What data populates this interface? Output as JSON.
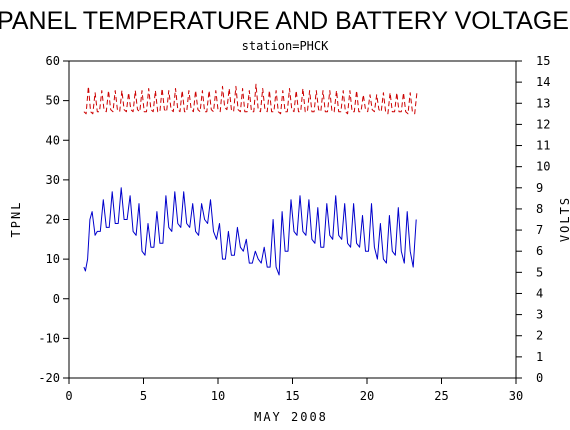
{
  "chart_data": {
    "type": "line",
    "title": "PANEL TEMPERATURE AND BATTERY VOLTAGE",
    "subtitle": "station=PHCK",
    "xlabel": "MAY 2008",
    "ylabel_left": "TPNL",
    "ylabel_right": "VOLTS",
    "xlim": [
      0,
      30
    ],
    "ylim_left": [
      -20,
      60
    ],
    "ylim_right": [
      0,
      15
    ],
    "x_ticks": [
      "0",
      "5",
      "10",
      "15",
      "20",
      "25",
      "30"
    ],
    "y_left_ticks": [
      "-20",
      "-10",
      "0",
      "10",
      "20",
      "30",
      "40",
      "50",
      "60"
    ],
    "y_right_ticks": [
      "0",
      "1",
      "2",
      "3",
      "4",
      "5",
      "6",
      "7",
      "8",
      "9",
      "10",
      "11",
      "12",
      "13",
      "14",
      "15"
    ],
    "grid": false,
    "series": [
      {
        "axis": "left",
        "color": "#0000cc",
        "style": "solid",
        "x": [
          1.0,
          1.1,
          1.25,
          1.4,
          1.55,
          1.75,
          1.9,
          2.1,
          2.3,
          2.5,
          2.7,
          2.9,
          3.1,
          3.3,
          3.5,
          3.7,
          3.9,
          4.1,
          4.3,
          4.5,
          4.7,
          4.9,
          5.1,
          5.3,
          5.5,
          5.7,
          5.9,
          6.1,
          6.3,
          6.5,
          6.7,
          6.9,
          7.1,
          7.3,
          7.5,
          7.7,
          7.9,
          8.1,
          8.3,
          8.5,
          8.7,
          8.9,
          9.1,
          9.3,
          9.5,
          9.7,
          9.9,
          10.1,
          10.3,
          10.5,
          10.7,
          10.9,
          11.1,
          11.3,
          11.5,
          11.7,
          11.9,
          12.1,
          12.3,
          12.5,
          12.7,
          12.9,
          13.1,
          13.3,
          13.5,
          13.7,
          13.9,
          14.1,
          14.3,
          14.5,
          14.7,
          14.9,
          15.1,
          15.3,
          15.5,
          15.7,
          15.9,
          16.1,
          16.3,
          16.5,
          16.7,
          16.9,
          17.1,
          17.3,
          17.5,
          17.7,
          17.9,
          18.1,
          18.3,
          18.5,
          18.7,
          18.9,
          19.1,
          19.3,
          19.5,
          19.7,
          19.9,
          20.1,
          20.3,
          20.5,
          20.7,
          20.9,
          21.1,
          21.3,
          21.5,
          21.7,
          21.9,
          22.1,
          22.3,
          22.5,
          22.7,
          22.9,
          23.1,
          23.3
        ],
        "y": [
          8,
          7,
          10,
          20,
          22,
          16,
          17,
          17,
          25,
          18,
          18,
          27,
          19,
          19,
          28,
          20,
          20,
          26,
          17,
          16,
          24,
          12,
          11,
          19,
          13,
          13,
          22,
          14,
          14,
          26,
          18,
          17,
          27,
          19,
          18,
          27,
          19,
          18,
          24,
          17,
          16,
          24,
          20,
          19,
          25,
          17,
          15,
          19,
          10,
          10,
          17,
          11,
          11,
          18,
          13,
          12,
          15,
          9,
          9,
          12,
          10,
          9,
          13,
          8,
          8,
          20,
          8,
          6,
          22,
          12,
          12,
          25,
          17,
          16,
          26,
          17,
          16,
          25,
          15,
          14,
          23,
          13,
          13,
          24,
          16,
          15,
          26,
          16,
          15,
          24,
          14,
          13,
          24,
          14,
          13,
          21,
          12,
          12,
          24,
          13,
          10,
          19,
          10,
          9,
          21,
          12,
          11,
          23,
          12,
          9,
          22,
          12,
          8,
          20
        ]
      },
      {
        "axis": "right",
        "color": "#cc0000",
        "style": "dashed",
        "x": [
          1.0,
          1.15,
          1.3,
          1.45,
          1.6,
          1.75,
          1.9,
          2.05,
          2.2,
          2.35,
          2.5,
          2.65,
          2.8,
          2.95,
          3.1,
          3.25,
          3.4,
          3.55,
          3.7,
          3.85,
          4.0,
          4.15,
          4.3,
          4.45,
          4.6,
          4.75,
          4.9,
          5.05,
          5.2,
          5.35,
          5.5,
          5.65,
          5.8,
          5.95,
          6.1,
          6.25,
          6.4,
          6.55,
          6.7,
          6.85,
          7.0,
          7.15,
          7.3,
          7.45,
          7.6,
          7.75,
          7.9,
          8.05,
          8.2,
          8.35,
          8.5,
          8.65,
          8.8,
          8.95,
          9.1,
          9.25,
          9.4,
          9.55,
          9.7,
          9.85,
          10.0,
          10.15,
          10.3,
          10.45,
          10.6,
          10.75,
          10.9,
          11.05,
          11.2,
          11.35,
          11.5,
          11.65,
          11.8,
          11.95,
          12.1,
          12.25,
          12.4,
          12.55,
          12.7,
          12.85,
          13.0,
          13.15,
          13.3,
          13.45,
          13.6,
          13.75,
          13.9,
          14.05,
          14.2,
          14.35,
          14.5,
          14.65,
          14.8,
          14.95,
          15.1,
          15.25,
          15.4,
          15.55,
          15.7,
          15.85,
          16.0,
          16.15,
          16.3,
          16.45,
          16.6,
          16.75,
          16.9,
          17.05,
          17.2,
          17.35,
          17.5,
          17.65,
          17.8,
          17.95,
          18.1,
          18.25,
          18.4,
          18.55,
          18.7,
          18.85,
          19.0,
          19.15,
          19.3,
          19.45,
          19.6,
          19.75,
          19.9,
          20.05,
          20.2,
          20.35,
          20.5,
          20.65,
          20.8,
          20.95,
          21.1,
          21.25,
          21.4,
          21.55,
          21.7,
          21.85,
          22.0,
          22.15,
          22.3,
          22.45,
          22.6,
          22.75,
          22.9,
          23.05,
          23.2,
          23.35
        ],
        "y": [
          12.6,
          12.5,
          13.8,
          12.6,
          12.5,
          13.5,
          12.6,
          12.6,
          13.6,
          12.7,
          12.6,
          13.6,
          12.7,
          12.6,
          13.6,
          12.7,
          12.6,
          13.6,
          12.7,
          12.6,
          13.5,
          12.7,
          12.6,
          13.6,
          12.7,
          12.6,
          13.6,
          12.6,
          12.6,
          13.7,
          12.7,
          12.6,
          13.6,
          12.6,
          12.6,
          13.7,
          12.7,
          12.6,
          13.6,
          12.7,
          12.6,
          13.7,
          12.7,
          12.6,
          13.6,
          12.6,
          12.6,
          13.6,
          12.7,
          12.6,
          13.6,
          12.7,
          12.6,
          13.6,
          12.6,
          12.6,
          13.6,
          12.7,
          12.6,
          13.6,
          12.7,
          12.6,
          13.8,
          12.8,
          12.7,
          13.7,
          12.7,
          12.6,
          13.8,
          12.7,
          12.6,
          13.7,
          12.6,
          12.6,
          13.6,
          12.6,
          12.6,
          13.9,
          12.7,
          12.6,
          13.7,
          12.7,
          12.6,
          13.6,
          12.6,
          12.6,
          13.6,
          12.6,
          12.5,
          13.6,
          12.6,
          12.6,
          13.7,
          12.7,
          12.6,
          13.6,
          12.6,
          12.6,
          13.7,
          12.6,
          12.6,
          13.6,
          12.6,
          12.6,
          13.6,
          12.7,
          12.6,
          13.6,
          12.6,
          12.6,
          13.6,
          12.6,
          12.6,
          13.6,
          12.6,
          12.6,
          13.6,
          12.6,
          12.5,
          13.6,
          12.6,
          12.6,
          13.6,
          12.6,
          12.6,
          13.4,
          12.7,
          12.6,
          13.4,
          12.7,
          12.6,
          13.4,
          12.7,
          12.6,
          13.5,
          12.6,
          12.5,
          13.5,
          12.6,
          12.6,
          13.5,
          12.6,
          12.6,
          13.5,
          12.6,
          12.5,
          13.5,
          12.6,
          12.5,
          13.5
        ]
      }
    ]
  }
}
